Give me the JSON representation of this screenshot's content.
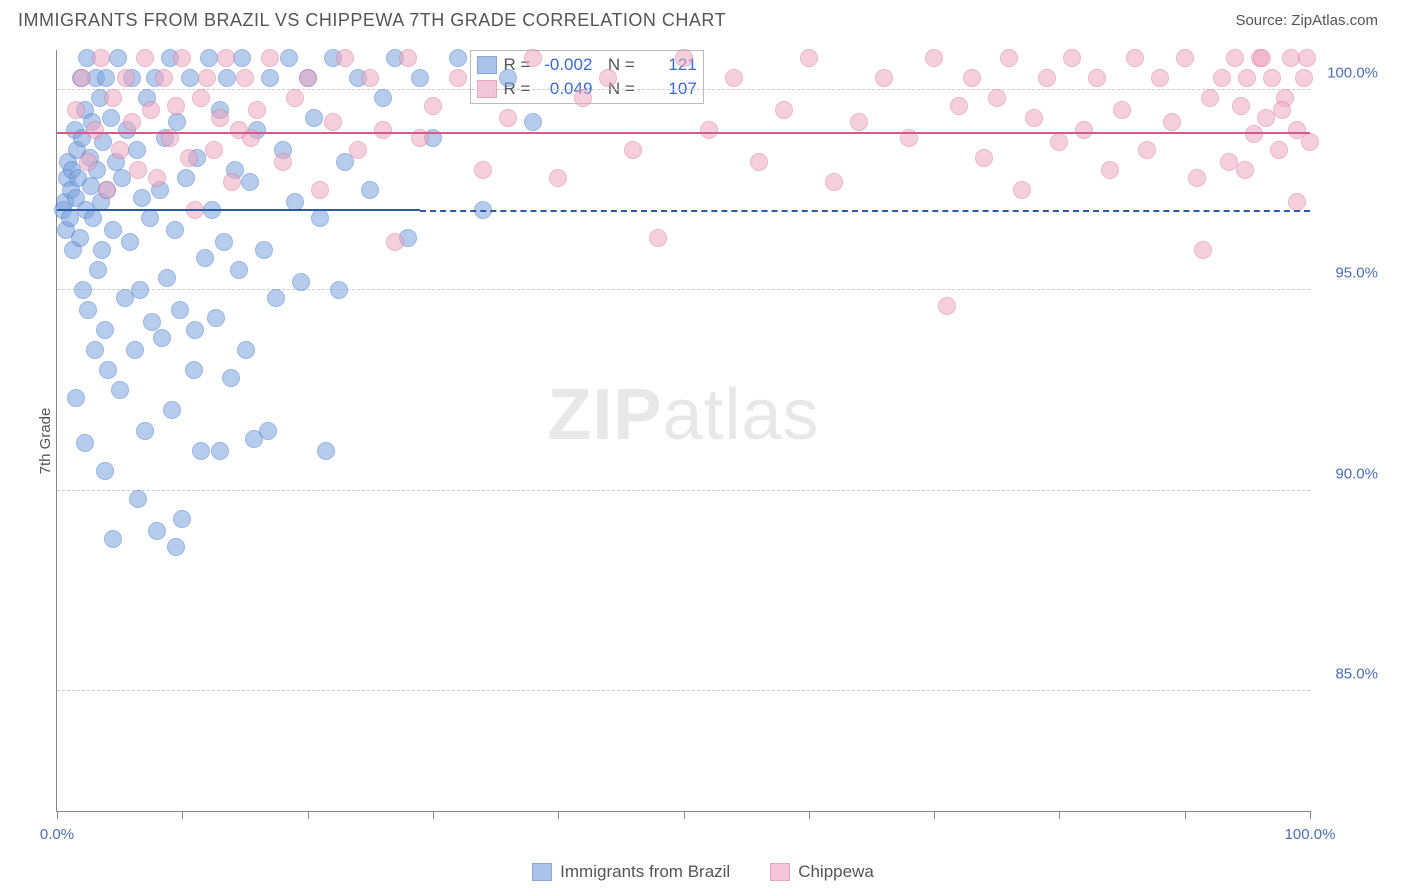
{
  "title": "IMMIGRANTS FROM BRAZIL VS CHIPPEWA 7TH GRADE CORRELATION CHART",
  "source": "Source: ZipAtlas.com",
  "ylabel": "7th Grade",
  "watermark_bold": "ZIP",
  "watermark_rest": "atlas",
  "chart": {
    "type": "scatter",
    "xlim": [
      0,
      100
    ],
    "ylim": [
      82,
      101
    ],
    "x_ticks": [
      0,
      10,
      20,
      30,
      40,
      50,
      60,
      70,
      80,
      90,
      100
    ],
    "x_tick_labels": {
      "0": "0.0%",
      "100": "100.0%"
    },
    "y_gridlines": [
      85,
      90,
      95,
      100
    ],
    "y_tick_labels": {
      "85": "85.0%",
      "90": "90.0%",
      "95": "95.0%",
      "100": "100.0%"
    },
    "marker_radius": 9,
    "marker_stroke_width": 1.5,
    "marker_fill_opacity": 0.3,
    "background_color": "#ffffff",
    "grid_color": "#cccccc",
    "axis_color": "#888888",
    "series": [
      {
        "name": "Immigrants from Brazil",
        "color_stroke": "#4a7bc8",
        "color_fill": "#7aa3de",
        "R": "-0.002",
        "N": "121",
        "trend": {
          "y_start": 97.0,
          "y_end": 96.95,
          "solid_until_x": 29,
          "color": "#2c5aa8"
        },
        "points": [
          [
            0.5,
            97.0
          ],
          [
            0.6,
            97.2
          ],
          [
            0.7,
            96.5
          ],
          [
            0.8,
            97.8
          ],
          [
            0.9,
            98.2
          ],
          [
            1.0,
            96.8
          ],
          [
            1.1,
            97.5
          ],
          [
            1.2,
            98.0
          ],
          [
            1.3,
            96.0
          ],
          [
            1.4,
            99.0
          ],
          [
            1.5,
            97.3
          ],
          [
            1.6,
            98.5
          ],
          [
            1.7,
            97.8
          ],
          [
            1.8,
            96.3
          ],
          [
            1.9,
            100.3
          ],
          [
            2.0,
            98.8
          ],
          [
            2.1,
            95.0
          ],
          [
            2.2,
            99.5
          ],
          [
            2.3,
            97.0
          ],
          [
            2.4,
            100.8
          ],
          [
            2.5,
            94.5
          ],
          [
            2.6,
            98.3
          ],
          [
            2.7,
            97.6
          ],
          [
            2.8,
            99.2
          ],
          [
            2.9,
            96.8
          ],
          [
            3.0,
            93.5
          ],
          [
            3.1,
            100.3
          ],
          [
            3.2,
            98.0
          ],
          [
            3.3,
            95.5
          ],
          [
            3.4,
            99.8
          ],
          [
            3.5,
            97.2
          ],
          [
            3.6,
            96.0
          ],
          [
            3.7,
            98.7
          ],
          [
            3.8,
            94.0
          ],
          [
            3.9,
            100.3
          ],
          [
            4.0,
            97.5
          ],
          [
            4.1,
            93.0
          ],
          [
            4.3,
            99.3
          ],
          [
            4.5,
            96.5
          ],
          [
            4.7,
            98.2
          ],
          [
            4.9,
            100.8
          ],
          [
            5.0,
            92.5
          ],
          [
            5.2,
            97.8
          ],
          [
            5.4,
            94.8
          ],
          [
            5.6,
            99.0
          ],
          [
            5.8,
            96.2
          ],
          [
            6.0,
            100.3
          ],
          [
            6.2,
            93.5
          ],
          [
            6.4,
            98.5
          ],
          [
            6.6,
            95.0
          ],
          [
            6.8,
            97.3
          ],
          [
            7.0,
            91.5
          ],
          [
            7.2,
            99.8
          ],
          [
            7.4,
            96.8
          ],
          [
            7.6,
            94.2
          ],
          [
            7.8,
            100.3
          ],
          [
            8.0,
            89.0
          ],
          [
            8.2,
            97.5
          ],
          [
            8.4,
            93.8
          ],
          [
            8.6,
            98.8
          ],
          [
            8.8,
            95.3
          ],
          [
            9.0,
            100.8
          ],
          [
            9.2,
            92.0
          ],
          [
            9.4,
            96.5
          ],
          [
            9.6,
            99.2
          ],
          [
            9.8,
            94.5
          ],
          [
            10.0,
            89.3
          ],
          [
            10.3,
            97.8
          ],
          [
            10.6,
            100.3
          ],
          [
            10.9,
            93.0
          ],
          [
            11.2,
            98.3
          ],
          [
            11.5,
            91.0
          ],
          [
            11.8,
            95.8
          ],
          [
            12.1,
            100.8
          ],
          [
            12.4,
            97.0
          ],
          [
            12.7,
            94.3
          ],
          [
            13.0,
            99.5
          ],
          [
            13.3,
            96.2
          ],
          [
            13.6,
            100.3
          ],
          [
            13.9,
            92.8
          ],
          [
            14.2,
            98.0
          ],
          [
            14.5,
            95.5
          ],
          [
            14.8,
            100.8
          ],
          [
            15.1,
            93.5
          ],
          [
            15.4,
            97.7
          ],
          [
            15.7,
            91.3
          ],
          [
            16.0,
            99.0
          ],
          [
            16.5,
            96.0
          ],
          [
            17.0,
            100.3
          ],
          [
            17.5,
            94.8
          ],
          [
            18.0,
            98.5
          ],
          [
            18.5,
            100.8
          ],
          [
            19.0,
            97.2
          ],
          [
            19.5,
            95.2
          ],
          [
            20.0,
            100.3
          ],
          [
            20.5,
            99.3
          ],
          [
            21.0,
            96.8
          ],
          [
            22.0,
            100.8
          ],
          [
            22.5,
            95.0
          ],
          [
            23.0,
            98.2
          ],
          [
            24.0,
            100.3
          ],
          [
            25.0,
            97.5
          ],
          [
            26.0,
            99.8
          ],
          [
            27.0,
            100.8
          ],
          [
            28.0,
            96.3
          ],
          [
            29.0,
            100.3
          ],
          [
            30.0,
            98.8
          ],
          [
            32.0,
            100.8
          ],
          [
            34.0,
            97.0
          ],
          [
            36.0,
            100.3
          ],
          [
            38.0,
            99.2
          ],
          [
            1.5,
            92.3
          ],
          [
            2.2,
            91.2
          ],
          [
            3.8,
            90.5
          ],
          [
            6.5,
            89.8
          ],
          [
            4.5,
            88.8
          ],
          [
            9.5,
            88.6
          ],
          [
            13.0,
            91.0
          ],
          [
            16.8,
            91.5
          ],
          [
            21.5,
            91.0
          ],
          [
            11.0,
            94.0
          ]
        ]
      },
      {
        "name": "Chippewa",
        "color_stroke": "#d87aa0",
        "color_fill": "#f0a8c2",
        "R": "0.049",
        "N": "107",
        "trend": {
          "y_start": 98.7,
          "y_end": 99.1,
          "solid_until_x": 100,
          "color": "#d65a8a"
        },
        "points": [
          [
            1.5,
            99.5
          ],
          [
            2.0,
            100.3
          ],
          [
            2.5,
            98.2
          ],
          [
            3.0,
            99.0
          ],
          [
            3.5,
            100.8
          ],
          [
            4.0,
            97.5
          ],
          [
            4.5,
            99.8
          ],
          [
            5.0,
            98.5
          ],
          [
            5.5,
            100.3
          ],
          [
            6.0,
            99.2
          ],
          [
            6.5,
            98.0
          ],
          [
            7.0,
            100.8
          ],
          [
            7.5,
            99.5
          ],
          [
            8.0,
            97.8
          ],
          [
            8.5,
            100.3
          ],
          [
            9.0,
            98.8
          ],
          [
            9.5,
            99.6
          ],
          [
            10.0,
            100.8
          ],
          [
            10.5,
            98.3
          ],
          [
            11.0,
            97.0
          ],
          [
            11.5,
            99.8
          ],
          [
            12.0,
            100.3
          ],
          [
            12.5,
            98.5
          ],
          [
            13.0,
            99.3
          ],
          [
            13.5,
            100.8
          ],
          [
            14.0,
            97.7
          ],
          [
            14.5,
            99.0
          ],
          [
            15.0,
            100.3
          ],
          [
            15.5,
            98.8
          ],
          [
            16.0,
            99.5
          ],
          [
            17.0,
            100.8
          ],
          [
            18.0,
            98.2
          ],
          [
            19.0,
            99.8
          ],
          [
            20.0,
            100.3
          ],
          [
            21.0,
            97.5
          ],
          [
            22.0,
            99.2
          ],
          [
            23.0,
            100.8
          ],
          [
            24.0,
            98.5
          ],
          [
            25.0,
            100.3
          ],
          [
            26.0,
            99.0
          ],
          [
            27.0,
            96.2
          ],
          [
            28.0,
            100.8
          ],
          [
            29.0,
            98.8
          ],
          [
            30.0,
            99.6
          ],
          [
            32.0,
            100.3
          ],
          [
            34.0,
            98.0
          ],
          [
            36.0,
            99.3
          ],
          [
            38.0,
            100.8
          ],
          [
            40.0,
            97.8
          ],
          [
            42.0,
            99.8
          ],
          [
            44.0,
            100.3
          ],
          [
            46.0,
            98.5
          ],
          [
            48.0,
            96.3
          ],
          [
            50.0,
            100.8
          ],
          [
            52.0,
            99.0
          ],
          [
            54.0,
            100.3
          ],
          [
            56.0,
            98.2
          ],
          [
            58.0,
            99.5
          ],
          [
            60.0,
            100.8
          ],
          [
            62.0,
            97.7
          ],
          [
            64.0,
            99.2
          ],
          [
            66.0,
            100.3
          ],
          [
            68.0,
            98.8
          ],
          [
            70.0,
            100.8
          ],
          [
            71.0,
            94.6
          ],
          [
            72.0,
            99.6
          ],
          [
            73.0,
            100.3
          ],
          [
            74.0,
            98.3
          ],
          [
            75.0,
            99.8
          ],
          [
            76.0,
            100.8
          ],
          [
            77.0,
            97.5
          ],
          [
            78.0,
            99.3
          ],
          [
            79.0,
            100.3
          ],
          [
            80.0,
            98.7
          ],
          [
            81.0,
            100.8
          ],
          [
            82.0,
            99.0
          ],
          [
            83.0,
            100.3
          ],
          [
            84.0,
            98.0
          ],
          [
            85.0,
            99.5
          ],
          [
            86.0,
            100.8
          ],
          [
            87.0,
            98.5
          ],
          [
            88.0,
            100.3
          ],
          [
            89.0,
            99.2
          ],
          [
            90.0,
            100.8
          ],
          [
            91.0,
            97.8
          ],
          [
            91.5,
            96.0
          ],
          [
            92.0,
            99.8
          ],
          [
            93.0,
            100.3
          ],
          [
            93.5,
            98.2
          ],
          [
            94.0,
            100.8
          ],
          [
            94.5,
            99.6
          ],
          [
            95.0,
            100.3
          ],
          [
            95.5,
            98.9
          ],
          [
            96.0,
            100.8
          ],
          [
            96.5,
            99.3
          ],
          [
            97.0,
            100.3
          ],
          [
            97.5,
            98.5
          ],
          [
            98.0,
            99.8
          ],
          [
            98.5,
            100.8
          ],
          [
            99.0,
            99.0
          ],
          [
            99.5,
            100.3
          ],
          [
            100.0,
            98.7
          ],
          [
            99.8,
            100.8
          ],
          [
            99.0,
            97.2
          ],
          [
            97.8,
            99.5
          ],
          [
            96.2,
            100.8
          ],
          [
            94.8,
            98.0
          ]
        ]
      }
    ]
  },
  "stats_legend": {
    "left_pct": 33,
    "top_pct": 0
  },
  "bottom_legend_labels": [
    "Immigrants from Brazil",
    "Chippewa"
  ]
}
